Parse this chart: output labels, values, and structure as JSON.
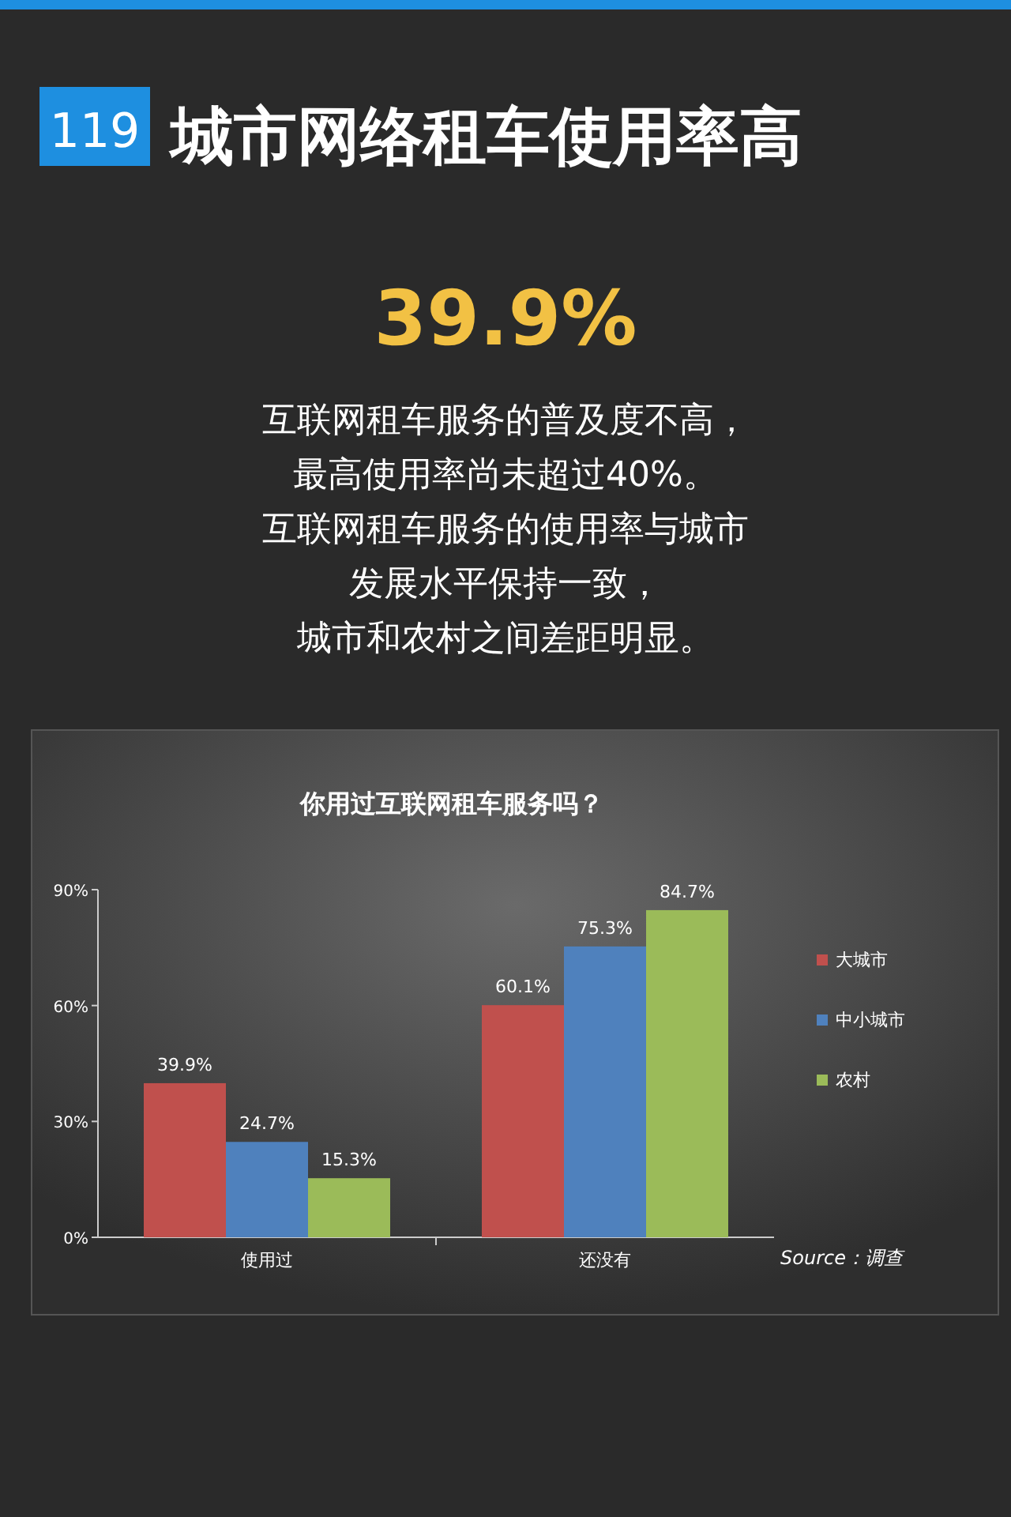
{
  "chart_data": {
    "type": "bar",
    "title": "城市网络租车使用率高",
    "subtitle": "你用过互联网租车服务吗？",
    "annotations": [
      "119",
      "39.9%",
      "互联网租车服务的普及度不高，",
      "最高使用率尚未超过40%。",
      "互联网租车服务的使用率与城市",
      "发展水平保持一致，",
      "城市和农村之间差距明显。",
      "Source：调查"
    ],
    "categories": [
      "使用过",
      "还没有"
    ],
    "series": [
      {
        "name": "大城市",
        "color": "#c0504d",
        "values": [
          39.9,
          60.1
        ],
        "value_labels": [
          "39.9%",
          "60.1%"
        ]
      },
      {
        "name": "中小城市",
        "color": "#4f81bd",
        "values": [
          24.7,
          75.3
        ],
        "value_labels": [
          "24.7%",
          "75.3%"
        ]
      },
      {
        "name": "农村",
        "color": "#9bbb59",
        "values": [
          15.3,
          84.7
        ],
        "value_labels": [
          "15.3%",
          "84.7%"
        ]
      }
    ],
    "ylim": [
      0,
      90
    ],
    "yticks": [
      {
        "value": 0,
        "label": "0%"
      },
      {
        "value": 30,
        "label": "30%"
      },
      {
        "value": 60,
        "label": "60%"
      },
      {
        "value": 90,
        "label": "90%"
      }
    ],
    "legend": "right",
    "grid": false
  }
}
